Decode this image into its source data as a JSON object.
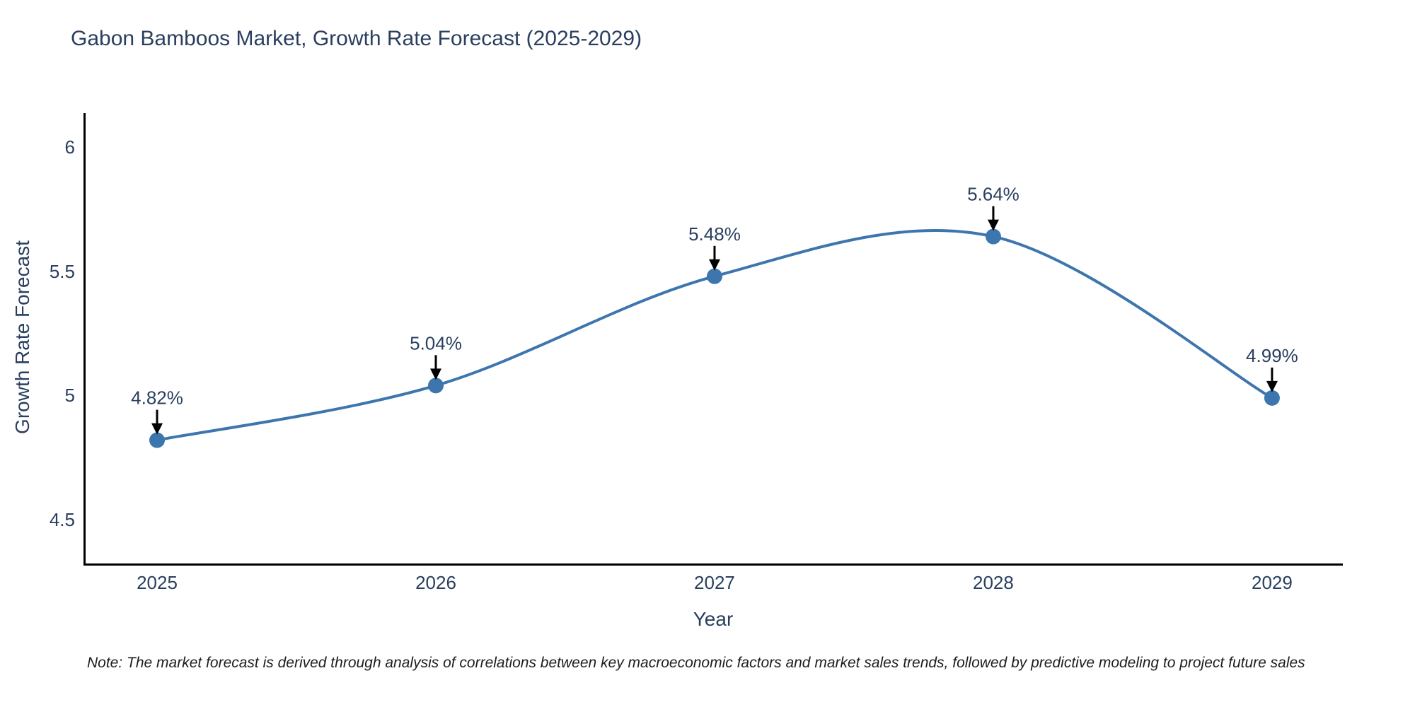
{
  "title": "Gabon Bamboos Market, Growth Rate Forecast (2025-2029)",
  "chart_data": {
    "type": "line",
    "title": "Gabon Bamboos Market, Growth Rate Forecast (2025-2029)",
    "x": [
      2025,
      2026,
      2027,
      2028,
      2029
    ],
    "series": [
      {
        "name": "Growth Rate Forecast",
        "values": [
          4.82,
          5.04,
          5.48,
          5.64,
          4.99
        ]
      }
    ],
    "point_labels": [
      "4.82%",
      "5.04%",
      "5.48%",
      "5.64%",
      "4.99%"
    ],
    "xtick_labels": [
      "2025",
      "2026",
      "2027",
      "2028",
      "2029"
    ],
    "ytick_values": [
      4.5,
      5,
      5.5,
      6
    ],
    "ytick_labels": [
      "4.5",
      "5",
      "5.5",
      "6"
    ],
    "xlabel": "Year",
    "ylabel": "Growth Rate Forecast",
    "xlim": [
      2024.736,
      2029.254
    ],
    "ylim": [
      4.315,
      6.137
    ],
    "grid": false,
    "legend_position": "none",
    "line_shape": "spline",
    "line_color": "#3d76ad",
    "marker_color": "#3d76ad",
    "annotation_arrow_color": "#000000",
    "axis_color": "#000000",
    "text_color": "#2a3f5f"
  },
  "note": {
    "text": "Note: The market forecast is derived through analysis of correlations between key macroeconomic factors and market sales trends, followed by predictive modeling to project future sales"
  }
}
